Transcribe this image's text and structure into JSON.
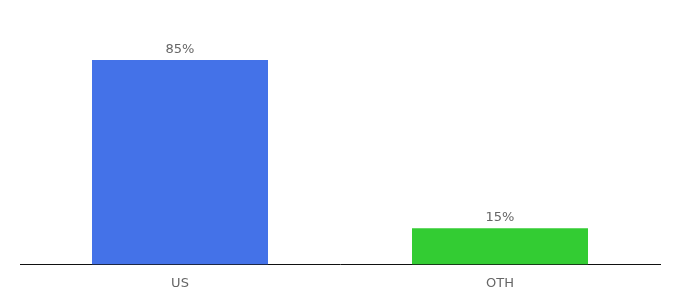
{
  "chart_data": {
    "type": "bar",
    "categories": [
      "US",
      "OTH"
    ],
    "values": [
      85,
      15
    ],
    "value_labels": [
      "85%",
      "15%"
    ],
    "colors": [
      "#4472e8",
      "#33cc33"
    ],
    "ylim": [
      0,
      100
    ],
    "grid": false,
    "data_labels": true,
    "tick_labels": "x"
  }
}
